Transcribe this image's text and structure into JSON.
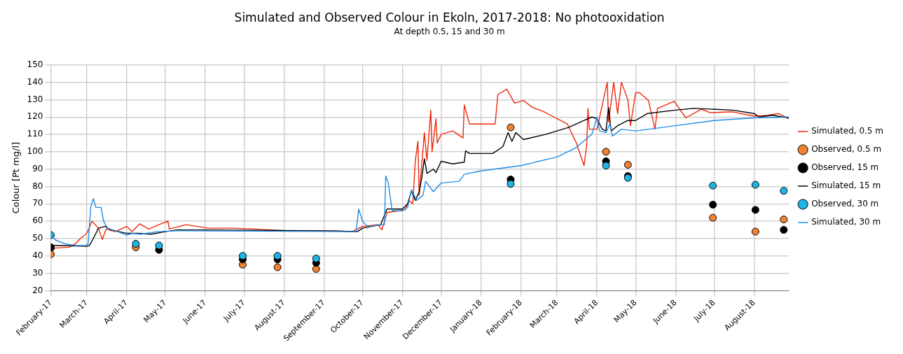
{
  "chart_data": {
    "type": "line",
    "title": "Simulated and Observed Colour in Ekoln, 2017-2018: No photooxidation",
    "subtitle": "At depth 0.5, 15 and 30 m",
    "ylabel": "Colour [Pt mg/l]",
    "xlim": [
      "2017-02-01",
      "2018-08-28"
    ],
    "xticks": [
      {
        "value": "2017-02-01",
        "label": "February-17"
      },
      {
        "value": "2017-03-01",
        "label": "March-17"
      },
      {
        "value": "2017-04-01",
        "label": "April-17"
      },
      {
        "value": "2017-05-01",
        "label": "May-17"
      },
      {
        "value": "2017-06-01",
        "label": "June-17"
      },
      {
        "value": "2017-07-01",
        "label": "July-17"
      },
      {
        "value": "2017-08-01",
        "label": "August-17"
      },
      {
        "value": "2017-09-01",
        "label": "September-17"
      },
      {
        "value": "2017-10-01",
        "label": "October-17"
      },
      {
        "value": "2017-11-01",
        "label": "November-17"
      },
      {
        "value": "2017-12-01",
        "label": "December-17"
      },
      {
        "value": "2018-01-01",
        "label": "January-18"
      },
      {
        "value": "2018-02-01",
        "label": "February-18"
      },
      {
        "value": "2018-03-01",
        "label": "March-18"
      },
      {
        "value": "2018-04-01",
        "label": "April-18"
      },
      {
        "value": "2018-05-01",
        "label": "May-18"
      },
      {
        "value": "2018-06-01",
        "label": "June-18"
      },
      {
        "value": "2018-07-01",
        "label": "July-18"
      },
      {
        "value": "2018-08-01",
        "label": "August-18"
      }
    ],
    "ylim": [
      20,
      150
    ],
    "yticks": [
      20,
      30,
      40,
      50,
      60,
      70,
      80,
      90,
      100,
      110,
      120,
      130,
      140,
      150
    ],
    "grid": true,
    "legend": "right",
    "series": [
      {
        "name": "Simulated, 0.5 m",
        "color": "#f0280a",
        "x": [
          "2017-02-01",
          "2017-02-04",
          "2017-02-15",
          "2017-02-20",
          "2017-02-24",
          "2017-03-01",
          "2017-03-05",
          "2017-03-10",
          "2017-03-13",
          "2017-03-16",
          "2017-03-23",
          "2017-04-01",
          "2017-04-05",
          "2017-04-11",
          "2017-04-18",
          "2017-04-26",
          "2017-05-03",
          "2017-05-04",
          "2017-05-17",
          "2017-06-03",
          "2017-06-21",
          "2017-07-10",
          "2017-08-04",
          "2017-09-10",
          "2017-09-23",
          "2017-10-01",
          "2017-10-13",
          "2017-10-16",
          "2017-10-20",
          "2017-11-03",
          "2017-11-06",
          "2017-11-09",
          "2017-11-11",
          "2017-11-13",
          "2017-11-14",
          "2017-11-18",
          "2017-11-20",
          "2017-11-23",
          "2017-11-24",
          "2017-11-27",
          "2017-11-28",
          "2017-12-01",
          "2017-12-10",
          "2017-12-18",
          "2017-12-19",
          "2017-12-23",
          "2018-01-12",
          "2018-01-14",
          "2018-01-21",
          "2018-01-27",
          "2018-02-03",
          "2018-02-10",
          "2018-02-19",
          "2018-03-01",
          "2018-03-09",
          "2018-03-16",
          "2018-03-22",
          "2018-03-24",
          "2018-03-25",
          "2018-03-26",
          "2018-04-01",
          "2018-04-09",
          "2018-04-10",
          "2018-04-14",
          "2018-04-17",
          "2018-04-20",
          "2018-04-25",
          "2018-04-27",
          "2018-05-01",
          "2018-05-04",
          "2018-05-11",
          "2018-05-16",
          "2018-05-18",
          "2018-05-31",
          "2018-06-09",
          "2018-06-21",
          "2018-06-28",
          "2018-07-15",
          "2018-08-01",
          "2018-08-12",
          "2018-08-20",
          "2018-08-28"
        ],
        "values": [
          41,
          44.5,
          45,
          47,
          50,
          53,
          60,
          56,
          49.5,
          55.5,
          54,
          57,
          54,
          58.5,
          55.5,
          58,
          60,
          55.5,
          58,
          56,
          56,
          55.5,
          54.5,
          54.5,
          54,
          57,
          58,
          55,
          65,
          66.5,
          72,
          70,
          95,
          106,
          75,
          111,
          95,
          124,
          100,
          119,
          105,
          110,
          112,
          108,
          127,
          116,
          116,
          133,
          136,
          128,
          129.5,
          125.5,
          123,
          119,
          116,
          105,
          92,
          104,
          125,
          113,
          113,
          140,
          117,
          140,
          122,
          140,
          130,
          115,
          134,
          134,
          129.5,
          113,
          125,
          129,
          119.5,
          124.5,
          122.5,
          123,
          120.5,
          121,
          122,
          119
        ]
      },
      {
        "name": "Observed, 0.5 m",
        "type": "scatter",
        "marker": "circle",
        "color": "#f08232",
        "x": [
          "2017-02-01",
          "2017-04-08",
          "2017-04-26",
          "2017-06-30",
          "2017-07-27",
          "2017-08-26",
          "2018-01-24",
          "2018-04-08",
          "2018-04-25",
          "2018-06-30",
          "2018-08-02",
          "2018-08-24"
        ],
        "values": [
          41,
          45,
          null,
          35,
          33.5,
          32.5,
          114,
          100,
          92.5,
          62,
          54,
          61
        ]
      },
      {
        "name": "Observed, 15 m",
        "type": "scatter",
        "marker": "circle",
        "color": "#000000",
        "x": [
          "2017-02-01",
          "2017-04-08",
          "2017-04-26",
          "2017-06-30",
          "2017-07-27",
          "2017-08-26",
          "2018-01-24",
          "2018-04-08",
          "2018-04-25",
          "2018-06-30",
          "2018-08-02",
          "2018-08-24"
        ],
        "values": [
          45,
          null,
          43.5,
          38,
          38,
          36,
          84,
          94.5,
          86,
          69.5,
          66.5,
          55
        ]
      },
      {
        "name": "Simulated, 15 m",
        "color": "#000000",
        "x": [
          "2017-02-01",
          "2017-02-10",
          "2017-03-01",
          "2017-03-03",
          "2017-03-06",
          "2017-03-10",
          "2017-03-15",
          "2017-03-20",
          "2017-04-01",
          "2017-04-10",
          "2017-04-20",
          "2017-05-01",
          "2017-05-10",
          "2017-06-01",
          "2017-09-01",
          "2017-09-27",
          "2017-10-01",
          "2017-10-15",
          "2017-10-20",
          "2017-11-01",
          "2017-11-05",
          "2017-11-08",
          "2017-11-11",
          "2017-11-14",
          "2017-11-16",
          "2017-11-18",
          "2017-11-20",
          "2017-11-25",
          "2017-11-27",
          "2017-12-01",
          "2017-12-10",
          "2017-12-19",
          "2017-12-20",
          "2017-12-23",
          "2018-01-10",
          "2018-01-18",
          "2018-01-22",
          "2018-01-25",
          "2018-01-28",
          "2018-02-03",
          "2018-02-20",
          "2018-03-01",
          "2018-03-10",
          "2018-03-22",
          "2018-03-28",
          "2018-04-01",
          "2018-04-05",
          "2018-04-08",
          "2018-04-10",
          "2018-04-12",
          "2018-04-17",
          "2018-04-25",
          "2018-05-01",
          "2018-05-10",
          "2018-06-01",
          "2018-06-15",
          "2018-07-15",
          "2018-08-01",
          "2018-08-05",
          "2018-08-15",
          "2018-08-28"
        ],
        "values": [
          46,
          46,
          45.5,
          46,
          50,
          56,
          57,
          55,
          53,
          53,
          52.5,
          54,
          55,
          55,
          54.5,
          54,
          56,
          58,
          67,
          67,
          70,
          77.5,
          72,
          77,
          85,
          96,
          87.5,
          90,
          88,
          94.5,
          93,
          94,
          100.5,
          99,
          99,
          103,
          111,
          106,
          111,
          107,
          110,
          112,
          114,
          118,
          120,
          119,
          113,
          112,
          125.5,
          112,
          115,
          118,
          118,
          122,
          124,
          125,
          124,
          122,
          120,
          121,
          119.5
        ]
      },
      {
        "name": "Observed, 30 m",
        "type": "scatter",
        "marker": "circle",
        "color": "#1eb4e6",
        "x": [
          "2017-02-01",
          "2017-04-08",
          "2017-04-26",
          "2017-06-30",
          "2017-07-27",
          "2017-08-26",
          "2018-01-24",
          "2018-04-08",
          "2018-04-25",
          "2018-06-30",
          "2018-08-02",
          "2018-08-24"
        ],
        "values": [
          52,
          47,
          46,
          40,
          40,
          38.5,
          81.5,
          92,
          85,
          80.5,
          81,
          77.5
        ]
      },
      {
        "name": "Simulated, 30 m",
        "color": "#1e8ce6",
        "x": [
          "2017-02-01",
          "2017-02-05",
          "2017-02-12",
          "2017-02-20",
          "2017-02-28",
          "2017-03-02",
          "2017-03-04",
          "2017-03-06",
          "2017-03-08",
          "2017-03-12",
          "2017-03-14",
          "2017-03-17",
          "2017-03-25",
          "2017-04-01",
          "2017-04-05",
          "2017-04-12",
          "2017-04-25",
          "2017-05-10",
          "2017-09-26",
          "2017-09-28",
          "2017-10-01",
          "2017-10-05",
          "2017-10-18",
          "2017-10-19",
          "2017-10-21",
          "2017-10-24",
          "2017-11-01",
          "2017-11-05",
          "2017-11-08",
          "2017-11-12",
          "2017-11-17",
          "2017-11-19",
          "2017-11-22",
          "2017-11-25",
          "2017-12-01",
          "2017-12-15",
          "2017-12-19",
          "2018-01-01",
          "2018-02-01",
          "2018-03-01",
          "2018-03-15",
          "2018-03-28",
          "2018-04-01",
          "2018-04-03",
          "2018-04-08",
          "2018-04-11",
          "2018-04-13",
          "2018-04-20",
          "2018-05-01",
          "2018-06-01",
          "2018-07-01",
          "2018-08-01",
          "2018-08-28"
        ],
        "values": [
          52,
          49,
          47,
          46,
          46,
          47,
          68,
          73,
          68,
          68,
          60,
          56,
          54,
          52,
          53,
          52.5,
          54,
          54.5,
          54,
          67,
          60,
          57,
          58,
          86,
          82,
          66,
          66,
          68,
          78,
          72,
          75,
          83,
          80,
          77,
          82,
          83,
          87,
          89,
          92,
          97,
          102,
          110,
          120,
          112,
          111,
          116,
          109,
          113,
          112,
          115,
          118,
          119.5,
          120
        ]
      }
    ]
  }
}
